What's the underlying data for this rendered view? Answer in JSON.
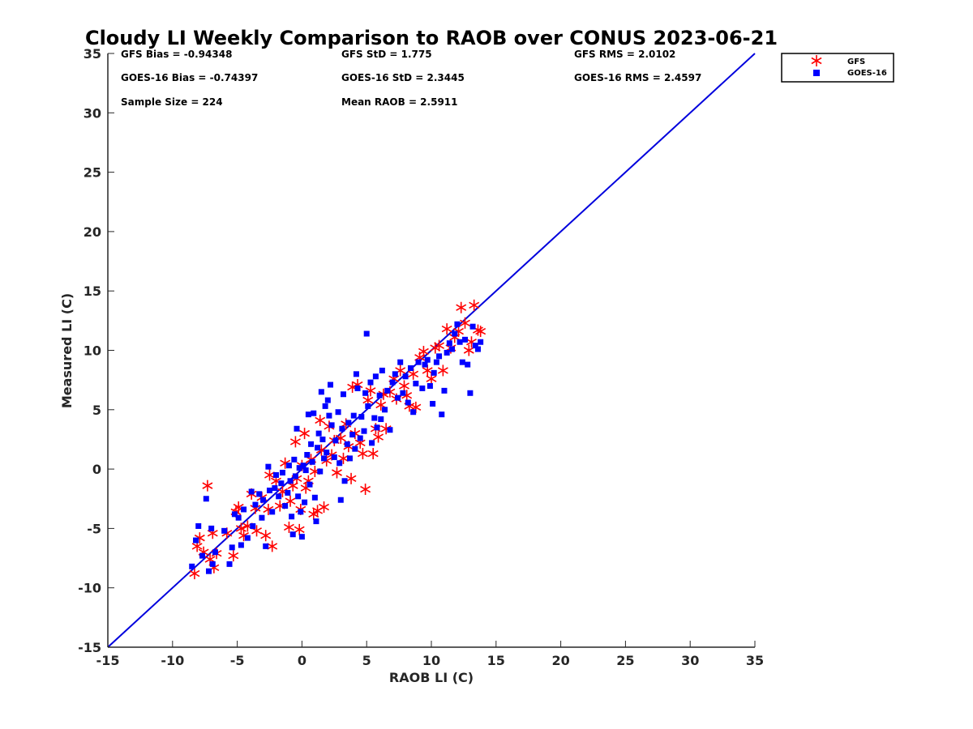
{
  "chart_data": {
    "type": "scatter",
    "title": "Cloudy LI Weekly Comparison to RAOB over CONUS 2023-06-21",
    "xlabel": "RAOB LI (C)",
    "ylabel": "Measured LI (C)",
    "xlim": [
      -15,
      35
    ],
    "ylim": [
      -15,
      35
    ],
    "xticks": [
      -15,
      -10,
      -5,
      0,
      5,
      10,
      15,
      20,
      25,
      30,
      35
    ],
    "yticks": [
      -15,
      -10,
      -5,
      0,
      5,
      10,
      15,
      20,
      25,
      30,
      35
    ],
    "grid": false,
    "legend_position": "top-right outside",
    "reference_line": {
      "x": [
        -15,
        35
      ],
      "y": [
        -15,
        35
      ],
      "color": "#0000dd"
    },
    "stats": [
      [
        "GFS Bias = -0.94348",
        "GFS StD = 1.775",
        "GFS RMS = 2.0102"
      ],
      [
        "GOES-16 Bias = -0.74397",
        "GOES-16 StD = 2.3445",
        "GOES-16 RMS = 2.4597"
      ],
      [
        "Sample Size = 224",
        "Mean RAOB = 2.5911",
        ""
      ]
    ],
    "series": [
      {
        "name": "GFS",
        "marker": "asterisk",
        "color": "#ff0000",
        "points": [
          [
            -8.3,
            -8.8
          ],
          [
            -8.1,
            -6.5
          ],
          [
            -7.9,
            -5.8
          ],
          [
            -7.6,
            -7.0
          ],
          [
            -7.3,
            -1.4
          ],
          [
            -7.1,
            -7.6
          ],
          [
            -6.9,
            -5.4
          ],
          [
            -6.8,
            -8.3
          ],
          [
            -6.6,
            -7.1
          ],
          [
            -5.8,
            -5.4
          ],
          [
            -5.3,
            -7.3
          ],
          [
            -5.1,
            -3.6
          ],
          [
            -4.9,
            -3.2
          ],
          [
            -4.7,
            -5.0
          ],
          [
            -4.5,
            -5.6
          ],
          [
            -4.2,
            -4.8
          ],
          [
            -3.9,
            -2.1
          ],
          [
            -3.6,
            -3.3
          ],
          [
            -3.5,
            -5.2
          ],
          [
            -3.1,
            -2.4
          ],
          [
            -2.8,
            -5.6
          ],
          [
            -2.6,
            -3.4
          ],
          [
            -2.5,
            -0.5
          ],
          [
            -2.3,
            -6.5
          ],
          [
            -2.0,
            -1.0
          ],
          [
            -1.7,
            -3.1
          ],
          [
            -1.5,
            -1.9
          ],
          [
            -1.3,
            0.5
          ],
          [
            -1.0,
            -4.9
          ],
          [
            -0.9,
            -2.7
          ],
          [
            -0.7,
            -1.4
          ],
          [
            -0.5,
            2.3
          ],
          [
            -0.4,
            -0.8
          ],
          [
            -0.2,
            -5.1
          ],
          [
            -0.1,
            -3.4
          ],
          [
            0.0,
            0.3
          ],
          [
            0.2,
            3.0
          ],
          [
            0.3,
            -1.6
          ],
          [
            0.5,
            -1.0
          ],
          [
            0.7,
            0.8
          ],
          [
            0.9,
            -3.8
          ],
          [
            1.0,
            -0.2
          ],
          [
            1.2,
            -3.5
          ],
          [
            1.4,
            4.1
          ],
          [
            1.5,
            1.6
          ],
          [
            1.7,
            -3.2
          ],
          [
            1.9,
            0.7
          ],
          [
            2.1,
            3.6
          ],
          [
            2.3,
            1.2
          ],
          [
            2.5,
            2.4
          ],
          [
            2.7,
            -0.3
          ],
          [
            3.0,
            2.6
          ],
          [
            3.2,
            0.9
          ],
          [
            3.4,
            3.8
          ],
          [
            3.6,
            1.9
          ],
          [
            3.8,
            -0.8
          ],
          [
            3.9,
            6.9
          ],
          [
            4.1,
            3.0
          ],
          [
            4.3,
            7.1
          ],
          [
            4.5,
            2.2
          ],
          [
            4.7,
            1.3
          ],
          [
            4.9,
            -1.7
          ],
          [
            5.1,
            5.8
          ],
          [
            5.3,
            6.6
          ],
          [
            5.5,
            1.3
          ],
          [
            5.7,
            3.4
          ],
          [
            5.9,
            2.7
          ],
          [
            6.1,
            5.4
          ],
          [
            6.3,
            6.3
          ],
          [
            6.5,
            3.4
          ],
          [
            6.8,
            6.5
          ],
          [
            7.1,
            7.6
          ],
          [
            7.3,
            5.9
          ],
          [
            7.6,
            8.3
          ],
          [
            7.9,
            7.0
          ],
          [
            8.1,
            6.2
          ],
          [
            8.3,
            5.3
          ],
          [
            8.6,
            8.0
          ],
          [
            8.8,
            5.2
          ],
          [
            9.1,
            9.4
          ],
          [
            9.4,
            9.9
          ],
          [
            9.7,
            8.3
          ],
          [
            10.0,
            7.6
          ],
          [
            10.3,
            10.2
          ],
          [
            10.6,
            10.4
          ],
          [
            10.9,
            8.3
          ],
          [
            11.2,
            11.8
          ],
          [
            11.5,
            10.2
          ],
          [
            11.8,
            11.1
          ],
          [
            12.1,
            11.6
          ],
          [
            12.3,
            13.6
          ],
          [
            12.6,
            12.3
          ],
          [
            12.9,
            10.0
          ],
          [
            13.1,
            10.7
          ],
          [
            13.3,
            13.8
          ],
          [
            13.6,
            11.7
          ],
          [
            13.8,
            11.6
          ]
        ]
      },
      {
        "name": "GOES-16",
        "marker": "square",
        "color": "#0000ff",
        "points": [
          [
            -8.5,
            -8.2
          ],
          [
            -8.2,
            -6.0
          ],
          [
            -8.0,
            -4.8
          ],
          [
            -7.7,
            -7.3
          ],
          [
            -7.4,
            -2.5
          ],
          [
            -7.2,
            -8.6
          ],
          [
            -7.0,
            -5.0
          ],
          [
            -6.9,
            -8.0
          ],
          [
            -6.7,
            -7.0
          ],
          [
            -6.0,
            -5.2
          ],
          [
            -5.6,
            -8.0
          ],
          [
            -5.4,
            -6.6
          ],
          [
            -5.2,
            -3.8
          ],
          [
            -4.9,
            -4.1
          ],
          [
            -4.7,
            -6.4
          ],
          [
            -4.5,
            -3.4
          ],
          [
            -4.2,
            -5.8
          ],
          [
            -3.9,
            -1.9
          ],
          [
            -3.8,
            -4.8
          ],
          [
            -3.6,
            -3.0
          ],
          [
            -3.3,
            -2.1
          ],
          [
            -3.1,
            -4.1
          ],
          [
            -3.0,
            -2.6
          ],
          [
            -2.8,
            -6.5
          ],
          [
            -2.6,
            0.2
          ],
          [
            -2.5,
            -1.8
          ],
          [
            -2.3,
            -3.6
          ],
          [
            -2.1,
            -1.6
          ],
          [
            -2.0,
            -0.5
          ],
          [
            -1.8,
            -2.3
          ],
          [
            -1.6,
            -1.2
          ],
          [
            -1.5,
            -0.3
          ],
          [
            -1.3,
            -3.1
          ],
          [
            -1.1,
            -2.0
          ],
          [
            -1.0,
            0.3
          ],
          [
            -0.9,
            -1.0
          ],
          [
            -0.8,
            -4.0
          ],
          [
            -0.7,
            -5.5
          ],
          [
            -0.6,
            0.8
          ],
          [
            -0.5,
            -0.6
          ],
          [
            -0.4,
            3.4
          ],
          [
            -0.3,
            -2.3
          ],
          [
            -0.2,
            0.1
          ],
          [
            -0.1,
            -3.6
          ],
          [
            0.0,
            -5.7
          ],
          [
            0.1,
            0.3
          ],
          [
            0.2,
            -2.8
          ],
          [
            0.3,
            -0.1
          ],
          [
            0.4,
            1.2
          ],
          [
            0.5,
            4.6
          ],
          [
            0.6,
            -1.3
          ],
          [
            0.7,
            2.1
          ],
          [
            0.8,
            0.6
          ],
          [
            0.9,
            4.7
          ],
          [
            1.0,
            -2.4
          ],
          [
            1.1,
            -4.4
          ],
          [
            1.2,
            1.8
          ],
          [
            1.3,
            3.0
          ],
          [
            1.4,
            -0.2
          ],
          [
            1.5,
            6.5
          ],
          [
            1.6,
            2.5
          ],
          [
            1.7,
            0.9
          ],
          [
            1.8,
            5.3
          ],
          [
            1.9,
            1.4
          ],
          [
            2.0,
            5.8
          ],
          [
            2.1,
            4.5
          ],
          [
            2.2,
            7.1
          ],
          [
            2.3,
            3.7
          ],
          [
            2.5,
            1.0
          ],
          [
            2.6,
            2.4
          ],
          [
            2.8,
            4.8
          ],
          [
            2.9,
            0.5
          ],
          [
            3.0,
            -2.6
          ],
          [
            3.1,
            3.4
          ],
          [
            3.2,
            6.3
          ],
          [
            3.3,
            -1.0
          ],
          [
            3.5,
            2.1
          ],
          [
            3.6,
            3.9
          ],
          [
            3.7,
            0.9
          ],
          [
            3.9,
            2.9
          ],
          [
            4.0,
            4.5
          ],
          [
            4.1,
            1.7
          ],
          [
            4.2,
            8.0
          ],
          [
            4.3,
            6.8
          ],
          [
            4.5,
            2.6
          ],
          [
            4.6,
            4.4
          ],
          [
            4.8,
            3.2
          ],
          [
            4.9,
            6.4
          ],
          [
            5.0,
            11.4
          ],
          [
            5.1,
            5.3
          ],
          [
            5.3,
            7.3
          ],
          [
            5.4,
            2.2
          ],
          [
            5.6,
            4.3
          ],
          [
            5.7,
            7.8
          ],
          [
            5.8,
            3.5
          ],
          [
            6.0,
            6.2
          ],
          [
            6.1,
            4.2
          ],
          [
            6.2,
            8.3
          ],
          [
            6.4,
            5.0
          ],
          [
            6.6,
            6.6
          ],
          [
            6.8,
            3.3
          ],
          [
            7.0,
            7.3
          ],
          [
            7.2,
            8.0
          ],
          [
            7.4,
            6.0
          ],
          [
            7.6,
            9.0
          ],
          [
            7.8,
            6.4
          ],
          [
            8.0,
            7.8
          ],
          [
            8.2,
            5.6
          ],
          [
            8.4,
            8.5
          ],
          [
            8.6,
            4.8
          ],
          [
            8.8,
            7.2
          ],
          [
            9.0,
            9.0
          ],
          [
            9.3,
            6.8
          ],
          [
            9.5,
            8.8
          ],
          [
            9.7,
            9.2
          ],
          [
            9.9,
            7.0
          ],
          [
            10.1,
            5.5
          ],
          [
            10.2,
            8.1
          ],
          [
            10.4,
            9.0
          ],
          [
            10.6,
            9.5
          ],
          [
            10.8,
            4.6
          ],
          [
            11.0,
            6.6
          ],
          [
            11.2,
            9.8
          ],
          [
            11.4,
            10.6
          ],
          [
            11.6,
            10.1
          ],
          [
            11.8,
            11.4
          ],
          [
            12.0,
            12.2
          ],
          [
            12.2,
            10.7
          ],
          [
            12.4,
            9.0
          ],
          [
            12.6,
            10.9
          ],
          [
            12.8,
            8.8
          ],
          [
            13.0,
            6.4
          ],
          [
            13.2,
            12.0
          ],
          [
            13.4,
            10.4
          ],
          [
            13.6,
            10.1
          ],
          [
            13.8,
            10.7
          ]
        ]
      }
    ]
  }
}
